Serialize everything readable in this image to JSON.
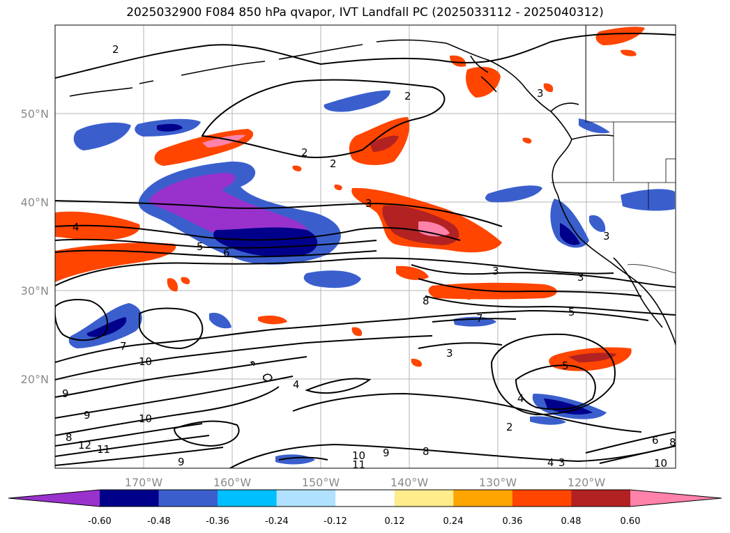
{
  "title": "2025032900 F084 850 hPa qvapor, IVT Landfall PC (2025033112 - 2025040312)",
  "lon_ticks": [
    "170°W",
    "160°W",
    "150°W",
    "140°W",
    "130°W",
    "120°W"
  ],
  "lat_ticks": [
    "50°N",
    "40°N",
    "30°N",
    "20°N"
  ],
  "colorbar": {
    "colors": [
      "#9932cc",
      "#00008b",
      "#3a5fcd",
      "#00bfff",
      "#b0e2ff",
      "#ffffff",
      "#ffec8b",
      "#ffa500",
      "#ff4500",
      "#b22222",
      "#ff82ab"
    ],
    "labels": [
      "-0.60",
      "-0.48",
      "-0.36",
      "-0.24",
      "-0.12",
      "0.12",
      "0.24",
      "0.36",
      "0.48",
      "0.60"
    ],
    "extend": "both"
  },
  "contour_labels": [
    "2",
    "2",
    "2",
    "2",
    "3",
    "3",
    "3",
    "3",
    "3",
    "4",
    "4",
    "4",
    "5",
    "5",
    "5",
    "6",
    "7",
    "7",
    "8",
    "8",
    "8",
    "9",
    "9",
    "9",
    "9",
    "10",
    "10",
    "10",
    "11",
    "11",
    "12",
    "2",
    "4",
    "3",
    "3",
    "6",
    "8",
    "10"
  ]
}
